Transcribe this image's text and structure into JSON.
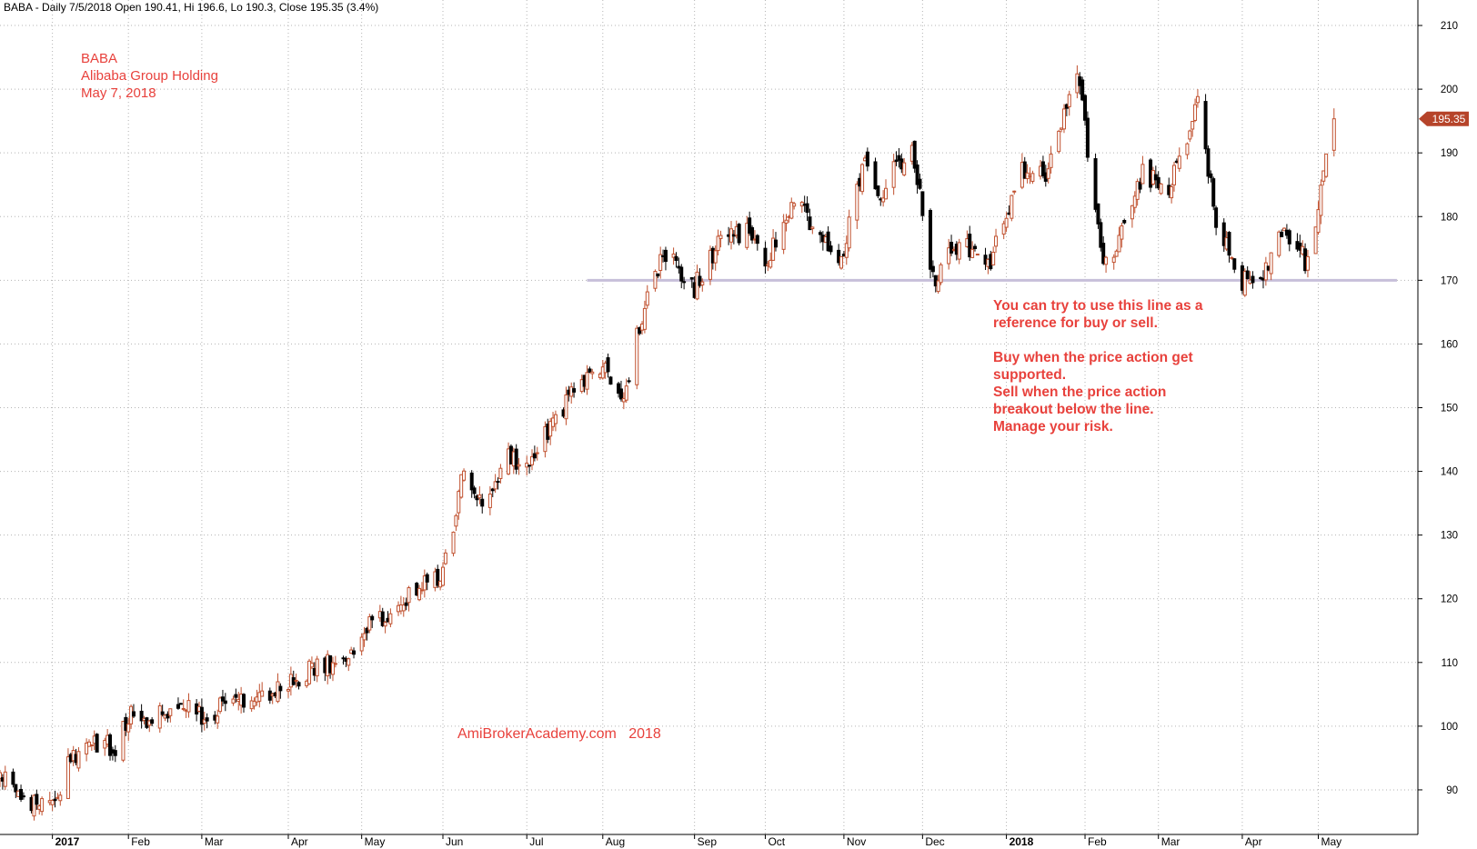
{
  "header": {
    "text": "BABA - Daily 7/5/2018 Open 190.41, Hi 196.6, Lo 190.3, Close 195.35 (3.4%)"
  },
  "ticker_block": {
    "symbol": "BABA",
    "name": "Alibaba Group Holding",
    "date": "May 7, 2018"
  },
  "annotation": {
    "lines": [
      "You can try to use this line as a",
      "reference for buy or sell.",
      "",
      "Buy when the price action get",
      "supported.",
      " Sell when the price action",
      "breakout below the line.",
      "Manage your risk."
    ]
  },
  "watermark": "AmiBrokerAcademy.com   2018",
  "colors": {
    "up_candle": "#c0502e",
    "down_candle": "#000000",
    "support_line": "#c7bfd9",
    "annotation_text": "#e8413c",
    "price_tag": "#b6442a",
    "grid": "#b4b4b4"
  },
  "chart_data": {
    "type": "candlestick",
    "symbol": "BABA",
    "y_axis": {
      "range": [
        83,
        214
      ],
      "ticks": [
        90,
        100,
        110,
        120,
        130,
        140,
        150,
        160,
        170,
        180,
        190,
        200,
        210
      ],
      "side": "right"
    },
    "x_axis": {
      "range": [
        "2016-12-14",
        "2018-06-08"
      ],
      "month_labels": [
        {
          "date": "2017-01-03",
          "label": "2017",
          "bold": true
        },
        {
          "date": "2017-02-01",
          "label": "Feb"
        },
        {
          "date": "2017-03-01",
          "label": "Mar"
        },
        {
          "date": "2017-04-03",
          "label": "Apr"
        },
        {
          "date": "2017-05-01",
          "label": "May"
        },
        {
          "date": "2017-06-01",
          "label": "Jun"
        },
        {
          "date": "2017-07-03",
          "label": "Jul"
        },
        {
          "date": "2017-08-01",
          "label": "Aug"
        },
        {
          "date": "2017-09-05",
          "label": "Sep"
        },
        {
          "date": "2017-10-02",
          "label": "Oct"
        },
        {
          "date": "2017-11-01",
          "label": "Nov"
        },
        {
          "date": "2017-12-01",
          "label": "Dec"
        },
        {
          "date": "2018-01-02",
          "label": "2018",
          "bold": true
        },
        {
          "date": "2018-02-01",
          "label": "Feb"
        },
        {
          "date": "2018-03-01",
          "label": "Mar"
        },
        {
          "date": "2018-04-02",
          "label": "Apr"
        },
        {
          "date": "2018-05-01",
          "label": "May"
        }
      ]
    },
    "grid": true,
    "last_price": 195.35,
    "last_price_label": "195.35",
    "support_line": {
      "value": 170,
      "from": "2017-07-26",
      "to": "2018-05-31"
    },
    "price_path": [
      {
        "date": "2016-12-14",
        "close": 92
      },
      {
        "date": "2016-12-23",
        "close": 88.5
      },
      {
        "date": "2017-01-03",
        "close": 87.5
      },
      {
        "date": "2017-01-10",
        "close": 95
      },
      {
        "date": "2017-01-18",
        "close": 97
      },
      {
        "date": "2017-01-27",
        "close": 97
      },
      {
        "date": "2017-02-01",
        "close": 102
      },
      {
        "date": "2017-02-10",
        "close": 101
      },
      {
        "date": "2017-02-20",
        "close": 102.5
      },
      {
        "date": "2017-03-01",
        "close": 102
      },
      {
        "date": "2017-03-10",
        "close": 103
      },
      {
        "date": "2017-03-20",
        "close": 104
      },
      {
        "date": "2017-04-03",
        "close": 107
      },
      {
        "date": "2017-04-13",
        "close": 109
      },
      {
        "date": "2017-04-25",
        "close": 111
      },
      {
        "date": "2017-05-05",
        "close": 116
      },
      {
        "date": "2017-05-15",
        "close": 119
      },
      {
        "date": "2017-05-22",
        "close": 122
      },
      {
        "date": "2017-06-01",
        "close": 124
      },
      {
        "date": "2017-06-09",
        "close": 140
      },
      {
        "date": "2017-06-16",
        "close": 136
      },
      {
        "date": "2017-06-26",
        "close": 142
      },
      {
        "date": "2017-07-05",
        "close": 141
      },
      {
        "date": "2017-07-13",
        "close": 148
      },
      {
        "date": "2017-07-24",
        "close": 154
      },
      {
        "date": "2017-08-01",
        "close": 156
      },
      {
        "date": "2017-08-09",
        "close": 152
      },
      {
        "date": "2017-08-17",
        "close": 166
      },
      {
        "date": "2017-08-24",
        "close": 175
      },
      {
        "date": "2017-09-05",
        "close": 169
      },
      {
        "date": "2017-09-15",
        "close": 176
      },
      {
        "date": "2017-09-25",
        "close": 178
      },
      {
        "date": "2017-10-02",
        "close": 172
      },
      {
        "date": "2017-10-12",
        "close": 182
      },
      {
        "date": "2017-10-20",
        "close": 179
      },
      {
        "date": "2017-10-30",
        "close": 172
      },
      {
        "date": "2017-11-08",
        "close": 188
      },
      {
        "date": "2017-11-15",
        "close": 184
      },
      {
        "date": "2017-11-27",
        "close": 191
      },
      {
        "date": "2017-12-05",
        "close": 170
      },
      {
        "date": "2017-12-15",
        "close": 176
      },
      {
        "date": "2017-12-26",
        "close": 172
      },
      {
        "date": "2018-01-08",
        "close": 187
      },
      {
        "date": "2018-01-17",
        "close": 186
      },
      {
        "date": "2018-01-29",
        "close": 204
      },
      {
        "date": "2018-02-05",
        "close": 180
      },
      {
        "date": "2018-02-09",
        "close": 172
      },
      {
        "date": "2018-02-23",
        "close": 187
      },
      {
        "date": "2018-03-05",
        "close": 184
      },
      {
        "date": "2018-03-16",
        "close": 198
      },
      {
        "date": "2018-03-23",
        "close": 180
      },
      {
        "date": "2018-04-02",
        "close": 170
      },
      {
        "date": "2018-04-09",
        "close": 170
      },
      {
        "date": "2018-04-18",
        "close": 179
      },
      {
        "date": "2018-04-27",
        "close": 172
      },
      {
        "date": "2018-05-07",
        "close": 195.35
      }
    ],
    "volatility": 1.6
  }
}
